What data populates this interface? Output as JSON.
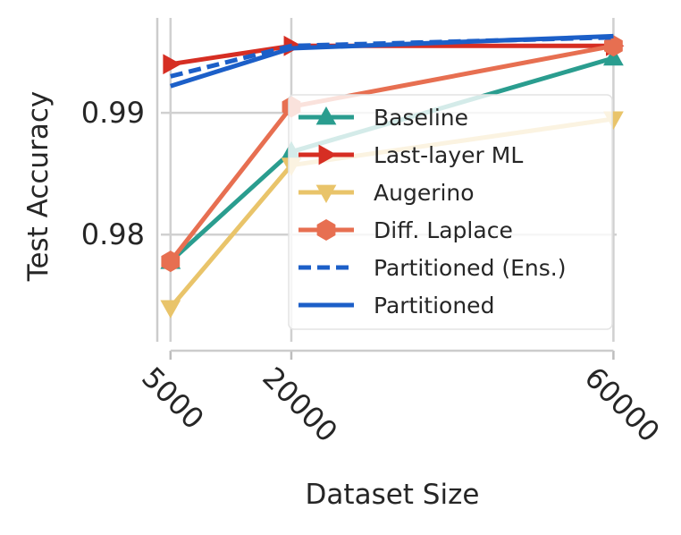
{
  "chart_data": {
    "type": "line",
    "xlabel": "Dataset Size",
    "ylabel": "Test Accuracy",
    "x": [
      5000,
      20000,
      60000
    ],
    "x_ticks": [
      "5000",
      "20000",
      "60000"
    ],
    "y_ticks": [
      "0.98",
      "0.99"
    ],
    "xlim": [
      3800,
      60400
    ],
    "ylim": [
      0.9712,
      0.9978
    ],
    "grid": true,
    "legend_position": "lower-right",
    "series": [
      {
        "name": "Baseline",
        "color": "#2a9d8f",
        "marker": "triangle-up",
        "style": "solid",
        "values": [
          0.9778,
          0.9868,
          0.9945
        ]
      },
      {
        "name": "Last-layer ML",
        "color": "#d62e23",
        "marker": "triangle-right",
        "style": "solid",
        "values": [
          0.994,
          0.9955,
          0.9955
        ]
      },
      {
        "name": "Augerino",
        "color": "#e9c46a",
        "marker": "triangle-down",
        "style": "solid",
        "values": [
          0.974,
          0.9857,
          0.9895
        ]
      },
      {
        "name": "Diff. Laplace",
        "color": "#e76f51",
        "marker": "hexagon",
        "style": "solid",
        "values": [
          0.9778,
          0.9905,
          0.9955
        ]
      },
      {
        "name": "Partitioned (Ens.)",
        "color": "#1c5fc8",
        "marker": "none",
        "style": "dashed",
        "values": [
          0.993,
          0.9955,
          0.9962
        ]
      },
      {
        "name": "Partitioned",
        "color": "#1c5fc8",
        "marker": "none",
        "style": "solid",
        "values": [
          0.9922,
          0.9953,
          0.9963
        ]
      }
    ]
  }
}
